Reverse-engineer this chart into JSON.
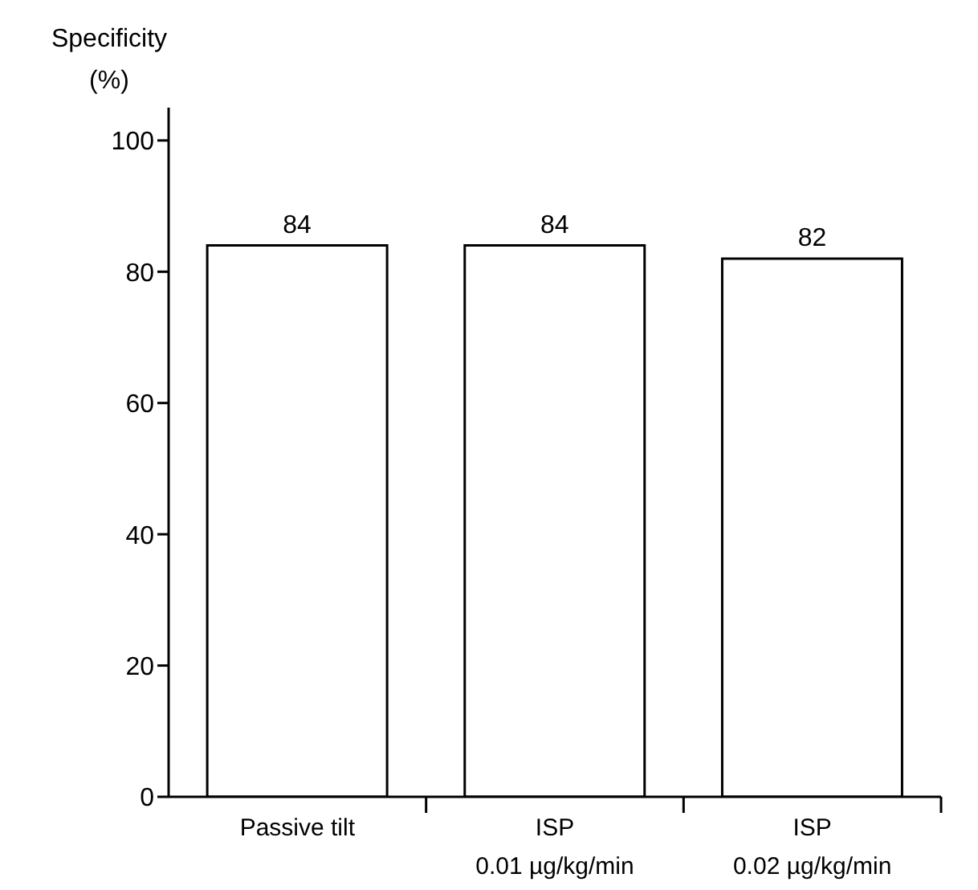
{
  "chart_data": {
    "type": "bar",
    "ylabel": "Specificity\n(%)",
    "categories": [
      "Passive tilt",
      "ISP\n0.01 µg/kg/min",
      "ISP\n0.02 µg/kg/min"
    ],
    "values": [
      84,
      84,
      82
    ],
    "color": "#ffffff",
    "ylim": [
      0,
      105
    ],
    "yticks": [
      0,
      20,
      40,
      60,
      80,
      100
    ],
    "data_labels": true,
    "grid": false,
    "legend": false
  }
}
